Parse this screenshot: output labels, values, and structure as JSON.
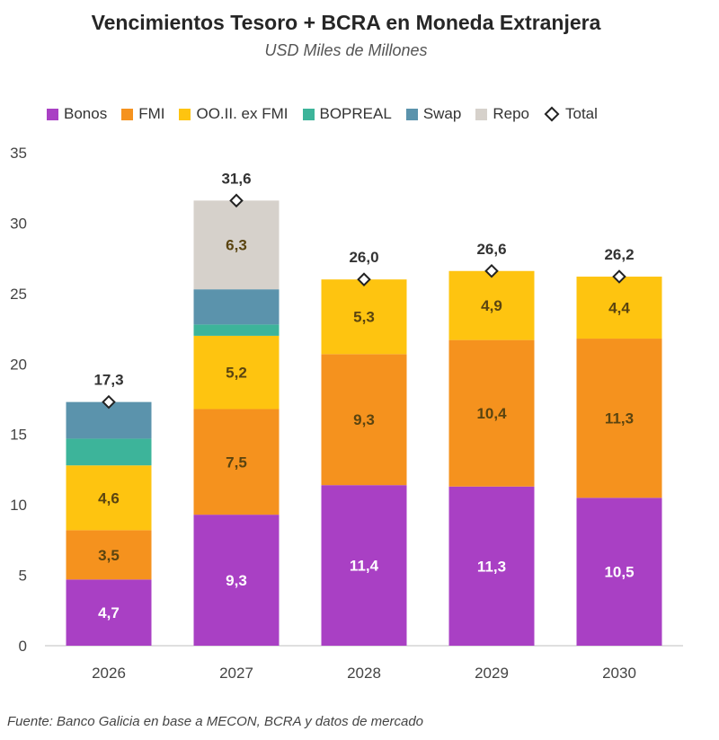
{
  "chart_data": {
    "type": "bar",
    "stacked": true,
    "title": "Vencimientos Tesoro + BCRA en Moneda Extranjera",
    "subtitle": "USD Miles de Millones",
    "xlabel": "",
    "ylabel": "",
    "ylim": [
      0,
      35
    ],
    "yticks": [
      0,
      5,
      10,
      15,
      20,
      25,
      30,
      35
    ],
    "categories": [
      "2026",
      "2027",
      "2028",
      "2029",
      "2030"
    ],
    "series": [
      {
        "name": "Bonos",
        "color": "#a940c4",
        "label_color": "#ffffff",
        "values": [
          4.7,
          9.3,
          11.4,
          11.3,
          10.5
        ],
        "labels": [
          "4,7",
          "9,3",
          "11,4",
          "11,3",
          "10,5"
        ]
      },
      {
        "name": "FMI",
        "color": "#f5921e",
        "label_color": "#5a4410",
        "values": [
          3.5,
          7.5,
          9.3,
          10.4,
          11.3
        ],
        "labels": [
          "3,5",
          "7,5",
          "9,3",
          "10,4",
          "11,3"
        ]
      },
      {
        "name": "OO.II. ex FMI",
        "color": "#fec410",
        "label_color": "#5a4410",
        "values": [
          4.6,
          5.2,
          5.3,
          4.9,
          4.4
        ],
        "labels": [
          "4,6",
          "5,2",
          "5,3",
          "4,9",
          "4,4"
        ]
      },
      {
        "name": "BOPREAL",
        "color": "#3db49a",
        "label_color": "#ffffff",
        "values": [
          1.9,
          0.8,
          0,
          0,
          0
        ],
        "labels": [
          "",
          "",
          "",
          "",
          ""
        ]
      },
      {
        "name": "Swap",
        "color": "#5b93ac",
        "label_color": "#ffffff",
        "values": [
          2.6,
          2.5,
          0,
          0,
          0
        ],
        "labels": [
          "",
          "",
          "",
          "",
          ""
        ]
      },
      {
        "name": "Repo",
        "color": "#d6d1cb",
        "label_color": "#5a4410",
        "values": [
          0,
          6.3,
          0,
          0,
          0
        ],
        "labels": [
          "",
          "6,3",
          "",
          "",
          ""
        ]
      }
    ],
    "total": {
      "name": "Total",
      "values": [
        17.3,
        31.6,
        26.0,
        26.6,
        26.2
      ],
      "labels": [
        "17,3",
        "31,6",
        "26,0",
        "26,6",
        "26,2"
      ]
    },
    "legend": "top",
    "grid": false
  },
  "source": "Fuente: Banco Galicia en base a MECON, BCRA y datos de mercado"
}
